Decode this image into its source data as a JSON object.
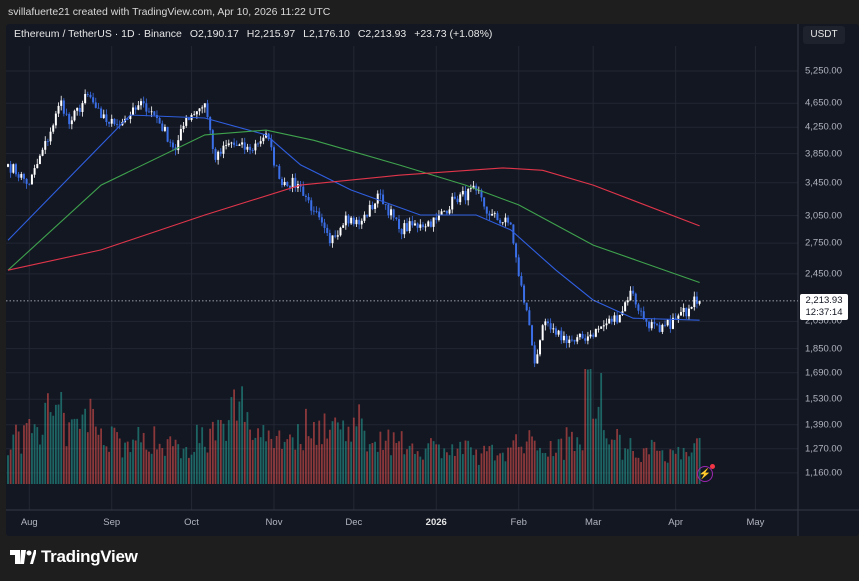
{
  "credit": "svillafuerte21 created with TradingView.com, Apr 10, 2026 11:22 UTC",
  "legend": {
    "symbol": "Ethereum / TetherUS · 1D · Binance",
    "open": "O2,190.17",
    "high": "H2,215.97",
    "low": "L2,176.10",
    "close": "C2,213.93",
    "change": "+23.73 (+1.08%)"
  },
  "currency": "USDT",
  "last_price": {
    "value": "2,213.93",
    "countdown": "12:37:14"
  },
  "logo_text": "TradingView",
  "icons": {
    "logo": "tradingview-logo",
    "alert": "lightning-icon"
  },
  "colors": {
    "up": "#ffffff",
    "down": "#3b6fe8",
    "vol_up": "#26a69a",
    "vol_down": "#ef5350",
    "ma_fast": "#2f5fe0",
    "ma_mid": "#3fa34d",
    "ma_slow": "#e0354a",
    "background": "#131722"
  },
  "chart_data": {
    "type": "candlestick",
    "scale": "log",
    "grid": true,
    "ylim": [
      1120,
      5900
    ],
    "y_ticks": [
      "5,250.00",
      "4,650.00",
      "4,250.00",
      "3,850.00",
      "3,450.00",
      "3,050.00",
      "2,750.00",
      "2,450.00",
      "2,050.00",
      "1,850.00",
      "1,690.00",
      "1,530.00",
      "1,390.00",
      "1,270.00",
      "1,160.00"
    ],
    "x_ticks": [
      {
        "label": "Aug",
        "date": "2025-08-01"
      },
      {
        "label": "Sep",
        "date": "2025-09-01"
      },
      {
        "label": "Oct",
        "date": "2025-10-01"
      },
      {
        "label": "Nov",
        "date": "2025-11-01"
      },
      {
        "label": "Dec",
        "date": "2025-12-01"
      },
      {
        "label": "2026",
        "date": "2026-01-01",
        "bold": true
      },
      {
        "label": "Feb",
        "date": "2026-02-01"
      },
      {
        "label": "Mar",
        "date": "2026-03-01"
      },
      {
        "label": "Apr",
        "date": "2026-04-01"
      },
      {
        "label": "May",
        "date": "2026-05-01"
      }
    ],
    "x_range": [
      "2025-07-24",
      "2026-05-29"
    ],
    "close_keypoints": [
      [
        "2025-07-24",
        3700
      ],
      [
        "2025-08-01",
        3430
      ],
      [
        "2025-08-09",
        4180
      ],
      [
        "2025-08-13",
        4700
      ],
      [
        "2025-08-16",
        4300
      ],
      [
        "2025-08-23",
        4800
      ],
      [
        "2025-08-28",
        4400
      ],
      [
        "2025-09-02",
        4300
      ],
      [
        "2025-09-08",
        4450
      ],
      [
        "2025-09-13",
        4650
      ],
      [
        "2025-09-18",
        4400
      ],
      [
        "2025-09-25",
        3900
      ],
      [
        "2025-09-29",
        4400
      ],
      [
        "2025-10-06",
        4650
      ],
      [
        "2025-10-10",
        3760
      ],
      [
        "2025-10-15",
        4000
      ],
      [
        "2025-10-23",
        3900
      ],
      [
        "2025-10-29",
        4150
      ],
      [
        "2025-11-03",
        3500
      ],
      [
        "2025-11-11",
        3400
      ],
      [
        "2025-11-16",
        3100
      ],
      [
        "2025-11-22",
        2750
      ],
      [
        "2025-11-28",
        3050
      ],
      [
        "2025-12-03",
        2950
      ],
      [
        "2025-12-11",
        3300
      ],
      [
        "2025-12-18",
        2900
      ],
      [
        "2025-12-26",
        2950
      ],
      [
        "2026-01-01",
        3000
      ],
      [
        "2026-01-08",
        3250
      ],
      [
        "2026-01-16",
        3350
      ],
      [
        "2026-01-21",
        3050
      ],
      [
        "2026-01-29",
        2950
      ],
      [
        "2026-02-01",
        2430
      ],
      [
        "2026-02-05",
        2020
      ],
      [
        "2026-02-07",
        1750
      ],
      [
        "2026-02-10",
        2020
      ],
      [
        "2026-02-15",
        1950
      ],
      [
        "2026-02-22",
        1900
      ],
      [
        "2026-02-28",
        1950
      ],
      [
        "2026-03-05",
        2020
      ],
      [
        "2026-03-11",
        2100
      ],
      [
        "2026-03-15",
        2300
      ],
      [
        "2026-03-20",
        2070
      ],
      [
        "2026-03-26",
        1970
      ],
      [
        "2026-04-01",
        2070
      ],
      [
        "2026-04-06",
        2150
      ],
      [
        "2026-04-08",
        2250
      ],
      [
        "2026-04-10",
        2213.93
      ]
    ],
    "last_candle": {
      "date": "2026-04-10",
      "open": 2190.17,
      "high": 2215.97,
      "low": 2176.1,
      "close": 2213.93
    },
    "volume_weekly_relative": [
      45,
      62,
      70,
      55,
      68,
      50,
      40,
      45,
      42,
      38,
      48,
      52,
      80,
      55,
      50,
      48,
      60,
      58,
      62,
      50,
      45,
      40,
      38,
      36,
      34,
      30,
      34,
      40,
      42,
      38,
      52,
      100,
      45,
      38,
      34,
      32,
      34,
      40,
      36,
      35,
      30,
      32,
      30,
      28,
      26,
      28
    ],
    "moving_averages": [
      {
        "color_key": "ma_fast",
        "points": [
          [
            "2025-07-24",
            2780
          ],
          [
            "2025-09-08",
            4450
          ],
          [
            "2025-10-06",
            4400
          ],
          [
            "2025-10-29",
            4130
          ],
          [
            "2025-11-11",
            3690
          ],
          [
            "2025-11-30",
            3358
          ],
          [
            "2025-12-26",
            3057
          ],
          [
            "2026-01-16",
            3057
          ],
          [
            "2026-01-29",
            2890
          ],
          [
            "2026-02-15",
            2484
          ],
          [
            "2026-03-01",
            2220
          ],
          [
            "2026-03-16",
            2074
          ],
          [
            "2026-04-10",
            2059
          ]
        ]
      },
      {
        "color_key": "ma_mid",
        "points": [
          [
            "2025-07-24",
            2484
          ],
          [
            "2025-08-28",
            3420
          ],
          [
            "2025-10-06",
            4130
          ],
          [
            "2025-10-29",
            4205
          ],
          [
            "2025-11-16",
            4047
          ],
          [
            "2025-12-18",
            3690
          ],
          [
            "2026-01-12",
            3420
          ],
          [
            "2026-02-01",
            3175
          ],
          [
            "2026-03-01",
            2730
          ],
          [
            "2026-04-10",
            2372
          ]
        ]
      },
      {
        "color_key": "ma_slow",
        "points": [
          [
            "2025-07-24",
            2484
          ],
          [
            "2025-08-28",
            2681
          ],
          [
            "2025-10-06",
            3057
          ],
          [
            "2025-11-11",
            3420
          ],
          [
            "2025-12-18",
            3550
          ],
          [
            "2026-01-26",
            3648
          ],
          [
            "2026-02-10",
            3615
          ],
          [
            "2026-03-01",
            3420
          ],
          [
            "2026-04-10",
            2934
          ]
        ]
      }
    ]
  }
}
